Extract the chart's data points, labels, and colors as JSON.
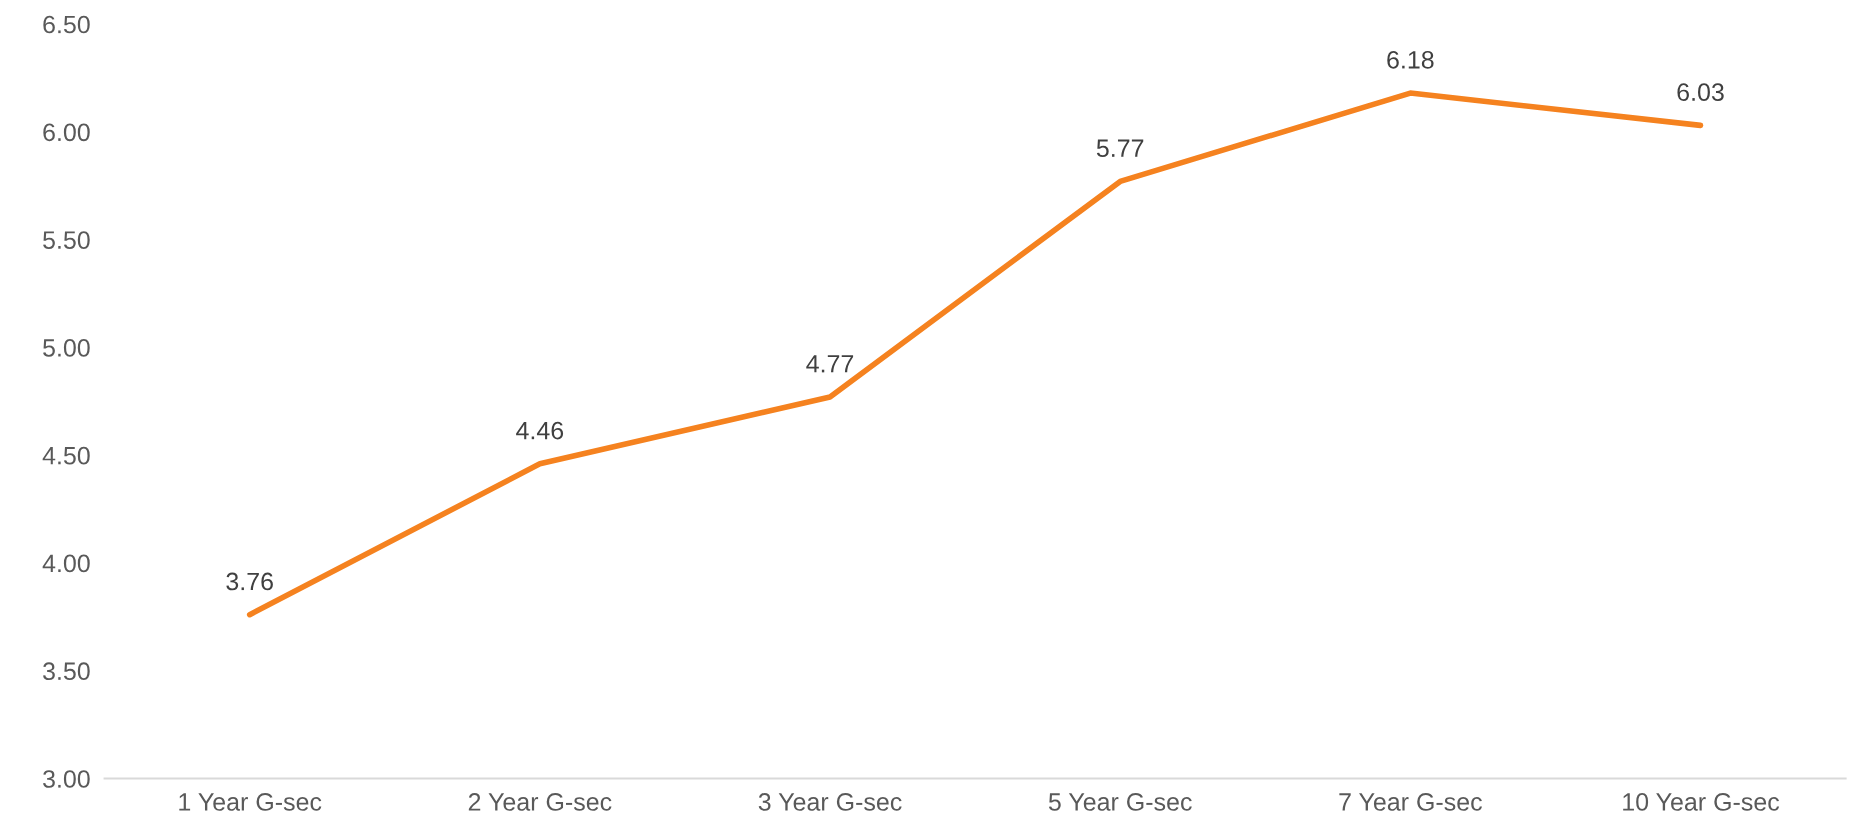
{
  "chart_data": {
    "type": "line",
    "categories": [
      "1 Year G-sec",
      "2 Year G-sec",
      "3 Year G-sec",
      "5 Year G-sec",
      "7 Year G-sec",
      "10 Year G-sec"
    ],
    "series": [
      {
        "color": "#f5821f",
        "values": [
          3.76,
          4.46,
          4.77,
          5.77,
          6.18,
          6.03
        ]
      }
    ],
    "ylim": [
      3.0,
      6.5
    ],
    "yticks": [
      {
        "value": 3.0,
        "label": "3.00"
      },
      {
        "value": 3.5,
        "label": "3.50"
      },
      {
        "value": 4.0,
        "label": "4.00"
      },
      {
        "value": 4.5,
        "label": "4.50"
      },
      {
        "value": 5.0,
        "label": "5.00"
      },
      {
        "value": 5.5,
        "label": "5.50"
      },
      {
        "value": 6.0,
        "label": "6.00"
      },
      {
        "value": 6.5,
        "label": "6.50"
      }
    ],
    "data_labels": true,
    "grid": false,
    "legend": false,
    "marker": "none",
    "line_style": "solid"
  }
}
